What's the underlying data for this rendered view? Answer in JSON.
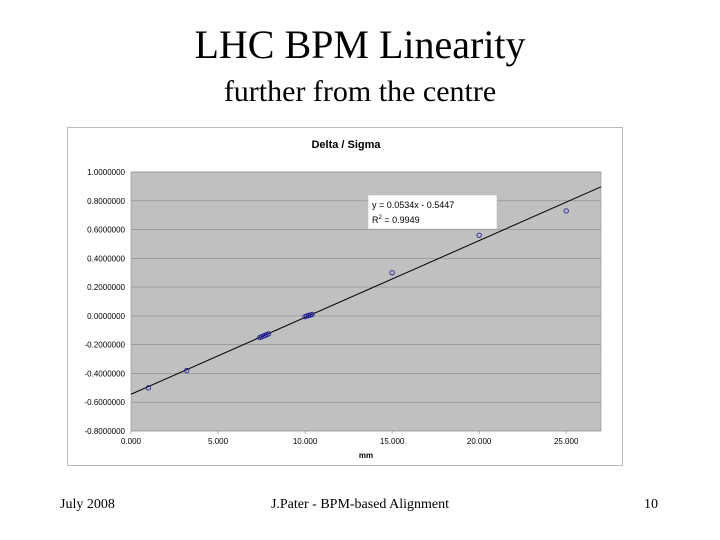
{
  "slide": {
    "title": "LHC BPM Linearity",
    "subtitle": "further from the centre",
    "footer_left": "July 2008",
    "footer_center": "J.Pater - BPM-based Alignment",
    "footer_right": "10"
  },
  "chart_data": {
    "type": "scatter",
    "title": "Delta / Sigma",
    "xlabel": "mm",
    "ylabel": "",
    "xlim": [
      0,
      27
    ],
    "ylim": [
      -0.8,
      1.0
    ],
    "x_ticks": [
      "0.000",
      "5.000",
      "10.000",
      "15.000",
      "20.000",
      "25.000"
    ],
    "x_tick_values": [
      0,
      5,
      10,
      15,
      20,
      25
    ],
    "y_ticks": [
      "1.0000000",
      "0.8000000",
      "0.6000000",
      "0.4000000",
      "0.2000000",
      "0.0000000",
      "-0.2000000",
      "-0.4000000",
      "-0.6000000",
      "-0.8000000"
    ],
    "y_tick_values": [
      1.0,
      0.8,
      0.6,
      0.4,
      0.2,
      0.0,
      -0.2,
      -0.4,
      -0.6,
      -0.8
    ],
    "grid": true,
    "series": [
      {
        "x": [
          1.0,
          3.2,
          7.4,
          7.5,
          7.6,
          7.7,
          7.8,
          7.9,
          10.0,
          10.1,
          10.2,
          10.3,
          10.4,
          15.0,
          20.0,
          25.0
        ],
        "y": [
          -0.5,
          -0.38,
          -0.15,
          -0.145,
          -0.14,
          -0.135,
          -0.13,
          -0.125,
          -0.005,
          0.0,
          0.003,
          0.006,
          0.01,
          0.3,
          0.56,
          0.73
        ],
        "color": "#1f1f9a"
      }
    ],
    "trendline": {
      "slope": 0.0534,
      "intercept": -0.5447,
      "equation": "y = 0.0534x - 0.5447",
      "r2_label": "R",
      "r2_exp": "2",
      "r2_value": " = 0.9949"
    },
    "colors": {
      "plot_bg": "#c0c0c0",
      "grid": "#8a8a8a",
      "marker": "#1f1f9a",
      "trendline": "#000000"
    }
  }
}
